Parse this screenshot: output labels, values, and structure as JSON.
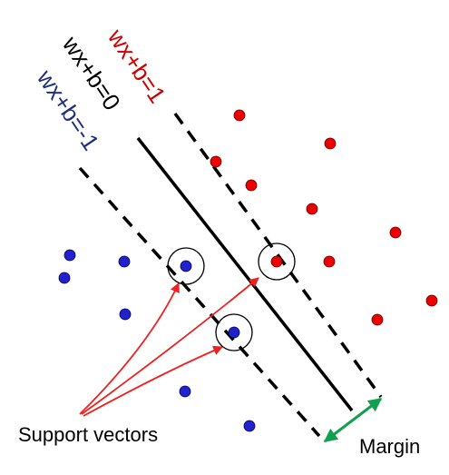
{
  "colors": {
    "positive_class": "#ee0000",
    "negative_class": "#2222cc",
    "positive_label": "#cc0000",
    "negative_label": "#1f2f80",
    "center_label": "#000000",
    "arrow": "#ee2020",
    "margin_arrow": "#10a050",
    "line": "#000000",
    "circle_outline": "#000000"
  },
  "labels": {
    "positive_hyperplane": "wx+b=1",
    "decision_boundary": "wx+b=0",
    "negative_hyperplane": "wx+b=-1",
    "support_vectors": "Support vectors",
    "margin": "Margin"
  },
  "icons": {
    "margin_arrow": "double-headed-arrow",
    "support_vector_marker": "circle-outline"
  }
}
